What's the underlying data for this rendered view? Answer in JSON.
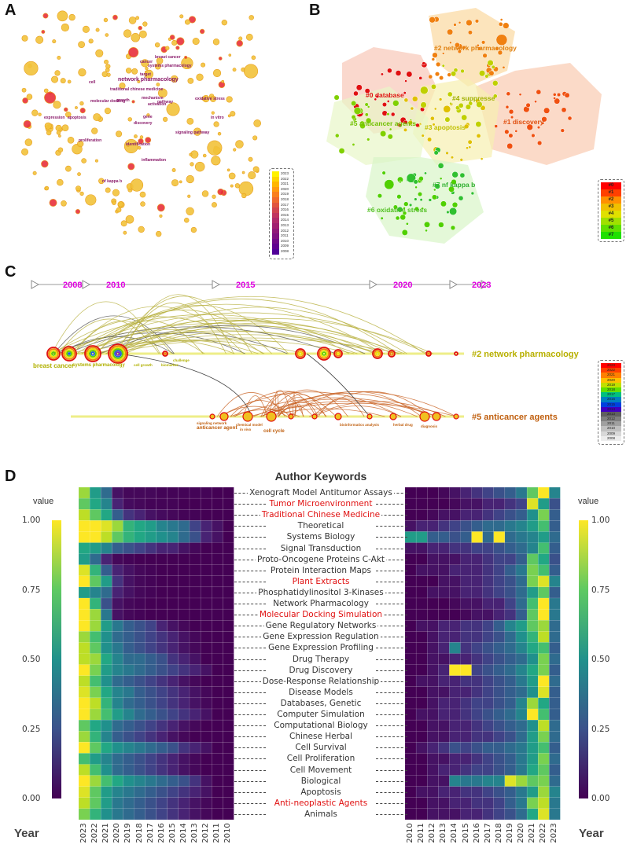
{
  "panels": {
    "a": {
      "label": "A",
      "visible_terms": [
        "cancer",
        "breast cancer",
        "systems pharmacology",
        "network pharmacology",
        "cell",
        "target",
        "traditional chinese medicine",
        "molecular docking",
        "mechanism",
        "growth",
        "activation",
        "pathway",
        "expression",
        "apoptosis",
        "discovery",
        "gene",
        "inflammation",
        "nf kappa b",
        "signaling pathway",
        "in vitro",
        "oxidative stress",
        "proliferation",
        "identification"
      ],
      "legend_years": [
        "2023",
        "2022",
        "2021",
        "2020",
        "2019",
        "2018",
        "2017",
        "2016",
        "2015",
        "2014",
        "2013",
        "2012",
        "2011",
        "2010",
        "2009",
        "2008"
      ]
    },
    "b": {
      "label": "B",
      "clusters": [
        {
          "id": "#0 database",
          "color": "#e01010"
        },
        {
          "id": "#1 discovery",
          "color": "#e05010"
        },
        {
          "id": "#2 network pharmacology",
          "color": "#e08010"
        },
        {
          "id": "#3 apoptosis",
          "color": "#c0c000"
        },
        {
          "id": "#4 suppresse",
          "color": "#a0b000"
        },
        {
          "id": "#5 anticancer agents",
          "color": "#70c000"
        },
        {
          "id": "#6 oxidative stress",
          "color": "#50c020"
        },
        {
          "id": "#7 nf kappa b",
          "color": "#30b030"
        }
      ],
      "legend_items": [
        "#0",
        "#1",
        "#2",
        "#3",
        "#4",
        "#5",
        "#6",
        "#7"
      ],
      "legend_colors": [
        "#ff0000",
        "#ff4000",
        "#ff9000",
        "#f0c000",
        "#e0e000",
        "#a0e000",
        "#60e000",
        "#20e000"
      ]
    },
    "c": {
      "label": "C",
      "timeline": [
        "2008",
        "2010",
        "2015",
        "2020",
        "2023"
      ],
      "cluster_a": "#2 network pharmacology",
      "cluster_b": "#5 anticancer agents",
      "a_terms": [
        "breast cancer",
        "systems pharmacology",
        "cell growth",
        "biomarker",
        "challenge"
      ],
      "b_terms": [
        "anticancer agent",
        "chemical model",
        "in vivo",
        "cell cycle",
        "bioinformatics analysis",
        "herbal drug",
        "diagnosis",
        "signaling network"
      ],
      "legend_years": [
        "2023",
        "2022",
        "2021",
        "2020",
        "2019",
        "2018",
        "2017",
        "2016",
        "2015",
        "2014",
        "2013",
        "2012",
        "2011",
        "2010",
        "2009",
        "2008"
      ]
    },
    "d": {
      "label": "D"
    }
  },
  "chart_data": {
    "type": "heatmap",
    "title": "Author Keywords",
    "value_label": "value",
    "year_label": "Year",
    "colorbar_ticks": [
      "1.00",
      "0.75",
      "0.50",
      "0.25",
      "0.00"
    ],
    "highlight_color": "#e01010",
    "keywords": [
      {
        "name": "Xenograft Model Antitumor Assays",
        "highlight": false
      },
      {
        "name": "Tumor Microenvironment",
        "highlight": true
      },
      {
        "name": "Traditional Chinese Medicine",
        "highlight": true
      },
      {
        "name": "Theoretical",
        "highlight": false
      },
      {
        "name": "Systems Biology",
        "highlight": false
      },
      {
        "name": "Signal Transduction",
        "highlight": false
      },
      {
        "name": "Proto-Oncogene Proteins C-Akt",
        "highlight": false
      },
      {
        "name": "Protein Interaction Maps",
        "highlight": false
      },
      {
        "name": "Plant Extracts",
        "highlight": true
      },
      {
        "name": "Phosphatidylinositol 3-Kinases",
        "highlight": false
      },
      {
        "name": "Network Pharmacology",
        "highlight": false
      },
      {
        "name": "Molecular Docking Simulation",
        "highlight": true
      },
      {
        "name": "Gene Regulatory Networks",
        "highlight": false
      },
      {
        "name": "Gene Expression Regulation",
        "highlight": false
      },
      {
        "name": "Gene Expression Profiling",
        "highlight": false
      },
      {
        "name": "Drug Therapy",
        "highlight": false
      },
      {
        "name": "Drug Discovery",
        "highlight": false
      },
      {
        "name": "Dose-Response Relationship",
        "highlight": false
      },
      {
        "name": "Disease Models",
        "highlight": false
      },
      {
        "name": "Databases, Genetic",
        "highlight": false
      },
      {
        "name": "Computer Simulation",
        "highlight": false
      },
      {
        "name": "Computational Biology",
        "highlight": false
      },
      {
        "name": "Chinese Herbal",
        "highlight": false
      },
      {
        "name": "Cell Survival",
        "highlight": false
      },
      {
        "name": "Cell Proliferation",
        "highlight": false
      },
      {
        "name": "Cell Movement",
        "highlight": false
      },
      {
        "name": "Biological",
        "highlight": false
      },
      {
        "name": "Apoptosis",
        "highlight": false
      },
      {
        "name": "Anti-neoplastic Agents",
        "highlight": true
      },
      {
        "name": "Animals",
        "highlight": false
      }
    ],
    "left_years": [
      "2023",
      "2022",
      "2021",
      "2020",
      "2019",
      "2018",
      "2017",
      "2016",
      "2015",
      "2014",
      "2013",
      "2012",
      "2011",
      "2010"
    ],
    "right_years": [
      "2010",
      "2011",
      "2012",
      "2013",
      "2014",
      "2015",
      "2016",
      "2017",
      "2018",
      "2019",
      "2020",
      "2021",
      "2022",
      "2023"
    ],
    "left_values": [
      [
        0.85,
        0.55,
        0.35,
        0.05,
        0.02,
        0.02,
        0.02,
        0.01,
        0.01,
        0.01,
        0.01,
        0.01,
        0.0,
        0.0
      ],
      [
        0.75,
        0.6,
        0.45,
        0.1,
        0.03,
        0.02,
        0.01,
        0.01,
        0.01,
        0.0,
        0.0,
        0.0,
        0.0,
        0.0
      ],
      [
        0.9,
        0.75,
        0.6,
        0.3,
        0.15,
        0.1,
        0.05,
        0.03,
        0.02,
        0.01,
        0.01,
        0.0,
        0.0,
        0.0
      ],
      [
        1.0,
        1.0,
        0.95,
        0.85,
        0.65,
        0.6,
        0.55,
        0.45,
        0.4,
        0.35,
        0.2,
        0.1,
        0.05,
        0.0
      ],
      [
        1.0,
        1.0,
        0.9,
        0.75,
        0.65,
        0.6,
        0.55,
        0.5,
        0.45,
        0.35,
        0.25,
        0.1,
        0.05,
        0.0
      ],
      [
        0.6,
        0.55,
        0.45,
        0.3,
        0.25,
        0.2,
        0.15,
        0.1,
        0.1,
        0.05,
        0.02,
        0.0,
        0.0,
        0.0
      ],
      [
        0.55,
        0.35,
        0.1,
        0.02,
        0.01,
        0.0,
        0.0,
        0.0,
        0.0,
        0.0,
        0.0,
        0.0,
        0.0,
        0.0
      ],
      [
        0.95,
        0.65,
        0.3,
        0.1,
        0.05,
        0.02,
        0.01,
        0.0,
        0.0,
        0.0,
        0.0,
        0.0,
        0.0,
        0.0
      ],
      [
        1.0,
        0.75,
        0.55,
        0.15,
        0.05,
        0.02,
        0.01,
        0.0,
        0.0,
        0.0,
        0.0,
        0.0,
        0.0,
        0.0
      ],
      [
        0.55,
        0.45,
        0.35,
        0.1,
        0.05,
        0.02,
        0.01,
        0.0,
        0.0,
        0.0,
        0.0,
        0.0,
        0.0,
        0.0
      ],
      [
        1.0,
        0.65,
        0.25,
        0.05,
        0.02,
        0.01,
        0.0,
        0.0,
        0.0,
        0.0,
        0.0,
        0.0,
        0.0,
        0.0
      ],
      [
        1.0,
        0.85,
        0.4,
        0.05,
        0.02,
        0.01,
        0.0,
        0.0,
        0.0,
        0.0,
        0.0,
        0.0,
        0.0,
        0.0
      ],
      [
        1.0,
        0.85,
        0.55,
        0.4,
        0.3,
        0.25,
        0.2,
        0.1,
        0.05,
        0.02,
        0.0,
        0.0,
        0.0,
        0.0
      ],
      [
        0.85,
        0.7,
        0.5,
        0.35,
        0.3,
        0.25,
        0.2,
        0.15,
        0.1,
        0.05,
        0.02,
        0.0,
        0.0,
        0.0
      ],
      [
        0.9,
        0.75,
        0.5,
        0.4,
        0.3,
        0.25,
        0.2,
        0.15,
        0.1,
        0.05,
        0.02,
        0.0,
        0.0,
        0.0
      ],
      [
        0.9,
        0.85,
        0.6,
        0.45,
        0.35,
        0.35,
        0.3,
        0.25,
        0.15,
        0.1,
        0.05,
        0.0,
        0.0,
        0.0
      ],
      [
        1.0,
        0.8,
        0.55,
        0.45,
        0.4,
        0.35,
        0.3,
        0.25,
        0.2,
        0.15,
        0.1,
        0.05,
        0.0,
        0.0
      ],
      [
        0.9,
        0.7,
        0.5,
        0.35,
        0.3,
        0.25,
        0.2,
        0.15,
        0.1,
        0.05,
        0.02,
        0.0,
        0.0,
        0.0
      ],
      [
        0.95,
        0.8,
        0.6,
        0.45,
        0.4,
        0.3,
        0.25,
        0.2,
        0.15,
        0.1,
        0.05,
        0.02,
        0.0,
        0.0
      ],
      [
        1.0,
        0.9,
        0.65,
        0.45,
        0.35,
        0.3,
        0.25,
        0.2,
        0.15,
        0.1,
        0.05,
        0.02,
        0.0,
        0.0
      ],
      [
        1.0,
        0.85,
        0.7,
        0.55,
        0.45,
        0.35,
        0.3,
        0.25,
        0.2,
        0.15,
        0.1,
        0.05,
        0.0,
        0.0
      ],
      [
        0.75,
        0.6,
        0.5,
        0.35,
        0.3,
        0.25,
        0.2,
        0.15,
        0.1,
        0.05,
        0.02,
        0.0,
        0.0,
        0.0
      ],
      [
        0.85,
        0.65,
        0.45,
        0.3,
        0.25,
        0.2,
        0.15,
        0.1,
        0.05,
        0.02,
        0.0,
        0.0,
        0.0,
        0.0
      ],
      [
        1.0,
        0.75,
        0.6,
        0.5,
        0.45,
        0.4,
        0.35,
        0.3,
        0.25,
        0.15,
        0.1,
        0.05,
        0.0,
        0.0
      ],
      [
        0.7,
        0.55,
        0.45,
        0.35,
        0.3,
        0.25,
        0.2,
        0.15,
        0.1,
        0.05,
        0.02,
        0.0,
        0.0,
        0.0
      ],
      [
        0.9,
        0.7,
        0.5,
        0.35,
        0.3,
        0.25,
        0.2,
        0.15,
        0.1,
        0.05,
        0.02,
        0.0,
        0.0,
        0.0
      ],
      [
        1.0,
        0.85,
        0.7,
        0.6,
        0.5,
        0.45,
        0.4,
        0.35,
        0.3,
        0.25,
        0.15,
        0.05,
        0.0,
        0.0
      ],
      [
        0.95,
        0.75,
        0.55,
        0.45,
        0.4,
        0.35,
        0.3,
        0.25,
        0.2,
        0.15,
        0.1,
        0.05,
        0.0,
        0.0
      ],
      [
        0.9,
        0.75,
        0.55,
        0.4,
        0.35,
        0.3,
        0.25,
        0.2,
        0.15,
        0.1,
        0.05,
        0.02,
        0.0,
        0.0
      ],
      [
        0.8,
        0.65,
        0.5,
        0.4,
        0.35,
        0.3,
        0.25,
        0.2,
        0.15,
        0.1,
        0.05,
        0.02,
        0.0,
        0.0
      ]
    ],
    "right_values": [
      [
        0.0,
        0.0,
        0.0,
        0.02,
        0.05,
        0.1,
        0.15,
        0.2,
        0.25,
        0.3,
        0.4,
        0.75,
        1.0,
        0.45
      ],
      [
        0.0,
        0.0,
        0.0,
        0.0,
        0.02,
        0.05,
        0.05,
        0.1,
        0.1,
        0.15,
        0.2,
        0.95,
        0.55,
        0.25
      ],
      [
        0.0,
        0.0,
        0.02,
        0.05,
        0.05,
        0.1,
        0.1,
        0.15,
        0.2,
        0.25,
        0.3,
        0.5,
        0.8,
        0.3
      ],
      [
        0.05,
        0.1,
        0.1,
        0.15,
        0.2,
        0.25,
        0.3,
        0.35,
        0.35,
        0.4,
        0.45,
        0.55,
        0.7,
        0.3
      ],
      [
        0.55,
        0.55,
        0.3,
        0.3,
        0.25,
        0.3,
        1.0,
        0.35,
        1.0,
        0.35,
        0.4,
        0.45,
        0.55,
        0.35
      ],
      [
        0.05,
        0.05,
        0.1,
        0.1,
        0.15,
        0.15,
        0.2,
        0.2,
        0.25,
        0.3,
        0.35,
        0.45,
        0.7,
        0.3
      ],
      [
        0.0,
        0.0,
        0.05,
        0.05,
        0.05,
        0.1,
        0.1,
        0.15,
        0.2,
        0.2,
        0.3,
        0.75,
        0.6,
        0.25
      ],
      [
        0.0,
        0.05,
        0.05,
        0.05,
        0.1,
        0.1,
        0.1,
        0.15,
        0.2,
        0.3,
        0.4,
        0.8,
        0.7,
        0.3
      ],
      [
        0.0,
        0.0,
        0.0,
        0.05,
        0.05,
        0.1,
        0.1,
        0.15,
        0.2,
        0.25,
        0.35,
        0.8,
        0.95,
        0.45
      ],
      [
        0.0,
        0.0,
        0.05,
        0.05,
        0.05,
        0.1,
        0.1,
        0.15,
        0.2,
        0.25,
        0.35,
        0.55,
        0.75,
        0.3
      ],
      [
        0.0,
        0.0,
        0.0,
        0.0,
        0.02,
        0.05,
        0.05,
        0.1,
        0.1,
        0.2,
        0.35,
        0.7,
        1.0,
        0.4
      ],
      [
        0.0,
        0.0,
        0.0,
        0.0,
        0.0,
        0.02,
        0.05,
        0.05,
        0.1,
        0.15,
        0.3,
        0.75,
        1.0,
        0.4
      ],
      [
        0.0,
        0.05,
        0.05,
        0.1,
        0.1,
        0.15,
        0.15,
        0.2,
        0.3,
        0.45,
        0.55,
        0.75,
        0.85,
        0.35
      ],
      [
        0.0,
        0.0,
        0.05,
        0.1,
        0.1,
        0.15,
        0.15,
        0.2,
        0.25,
        0.35,
        0.5,
        0.65,
        0.9,
        0.35
      ],
      [
        0.0,
        0.0,
        0.05,
        0.1,
        0.45,
        0.15,
        0.2,
        0.25,
        0.3,
        0.35,
        0.45,
        0.6,
        0.7,
        0.3
      ],
      [
        0.0,
        0.0,
        0.05,
        0.05,
        0.1,
        0.1,
        0.15,
        0.2,
        0.25,
        0.3,
        0.35,
        0.5,
        0.8,
        0.35
      ],
      [
        0.0,
        0.0,
        0.05,
        0.1,
        1.0,
        1.0,
        0.2,
        0.25,
        0.3,
        0.35,
        0.45,
        0.6,
        0.8,
        0.3
      ],
      [
        0.0,
        0.05,
        0.05,
        0.1,
        0.1,
        0.15,
        0.15,
        0.2,
        0.25,
        0.3,
        0.4,
        0.55,
        1.0,
        0.35
      ],
      [
        0.0,
        0.0,
        0.05,
        0.05,
        0.1,
        0.1,
        0.15,
        0.2,
        0.25,
        0.3,
        0.35,
        0.5,
        0.95,
        0.3
      ],
      [
        0.0,
        0.0,
        0.05,
        0.1,
        0.1,
        0.15,
        0.2,
        0.2,
        0.25,
        0.3,
        0.45,
        0.85,
        0.6,
        0.3
      ],
      [
        0.0,
        0.05,
        0.05,
        0.1,
        0.1,
        0.15,
        0.2,
        0.25,
        0.3,
        0.35,
        0.45,
        1.0,
        0.7,
        0.3
      ],
      [
        0.0,
        0.0,
        0.05,
        0.05,
        0.1,
        0.1,
        0.15,
        0.2,
        0.25,
        0.3,
        0.35,
        0.5,
        0.9,
        0.35
      ],
      [
        0.0,
        0.0,
        0.05,
        0.05,
        0.1,
        0.1,
        0.15,
        0.15,
        0.2,
        0.25,
        0.35,
        0.55,
        0.8,
        0.35
      ],
      [
        0.0,
        0.05,
        0.1,
        0.15,
        0.25,
        0.2,
        0.25,
        0.3,
        0.3,
        0.35,
        0.4,
        0.55,
        0.7,
        0.3
      ],
      [
        0.0,
        0.0,
        0.05,
        0.05,
        0.1,
        0.1,
        0.15,
        0.2,
        0.25,
        0.3,
        0.4,
        0.55,
        0.8,
        0.35
      ],
      [
        0.0,
        0.0,
        0.05,
        0.1,
        0.1,
        0.15,
        0.2,
        0.2,
        0.25,
        0.3,
        0.4,
        0.6,
        0.75,
        0.3
      ],
      [
        0.0,
        0.0,
        0.05,
        0.05,
        0.45,
        0.4,
        0.4,
        0.45,
        0.45,
        0.95,
        0.85,
        0.75,
        0.8,
        0.35
      ],
      [
        0.0,
        0.05,
        0.05,
        0.1,
        0.1,
        0.15,
        0.15,
        0.2,
        0.25,
        0.3,
        0.4,
        0.55,
        0.85,
        0.45
      ],
      [
        0.0,
        0.0,
        0.05,
        0.05,
        0.1,
        0.1,
        0.15,
        0.15,
        0.2,
        0.3,
        0.4,
        0.8,
        0.9,
        0.4
      ],
      [
        0.0,
        0.0,
        0.05,
        0.05,
        0.05,
        0.1,
        0.1,
        0.15,
        0.2,
        0.25,
        0.35,
        0.6,
        0.95,
        0.4
      ]
    ]
  }
}
